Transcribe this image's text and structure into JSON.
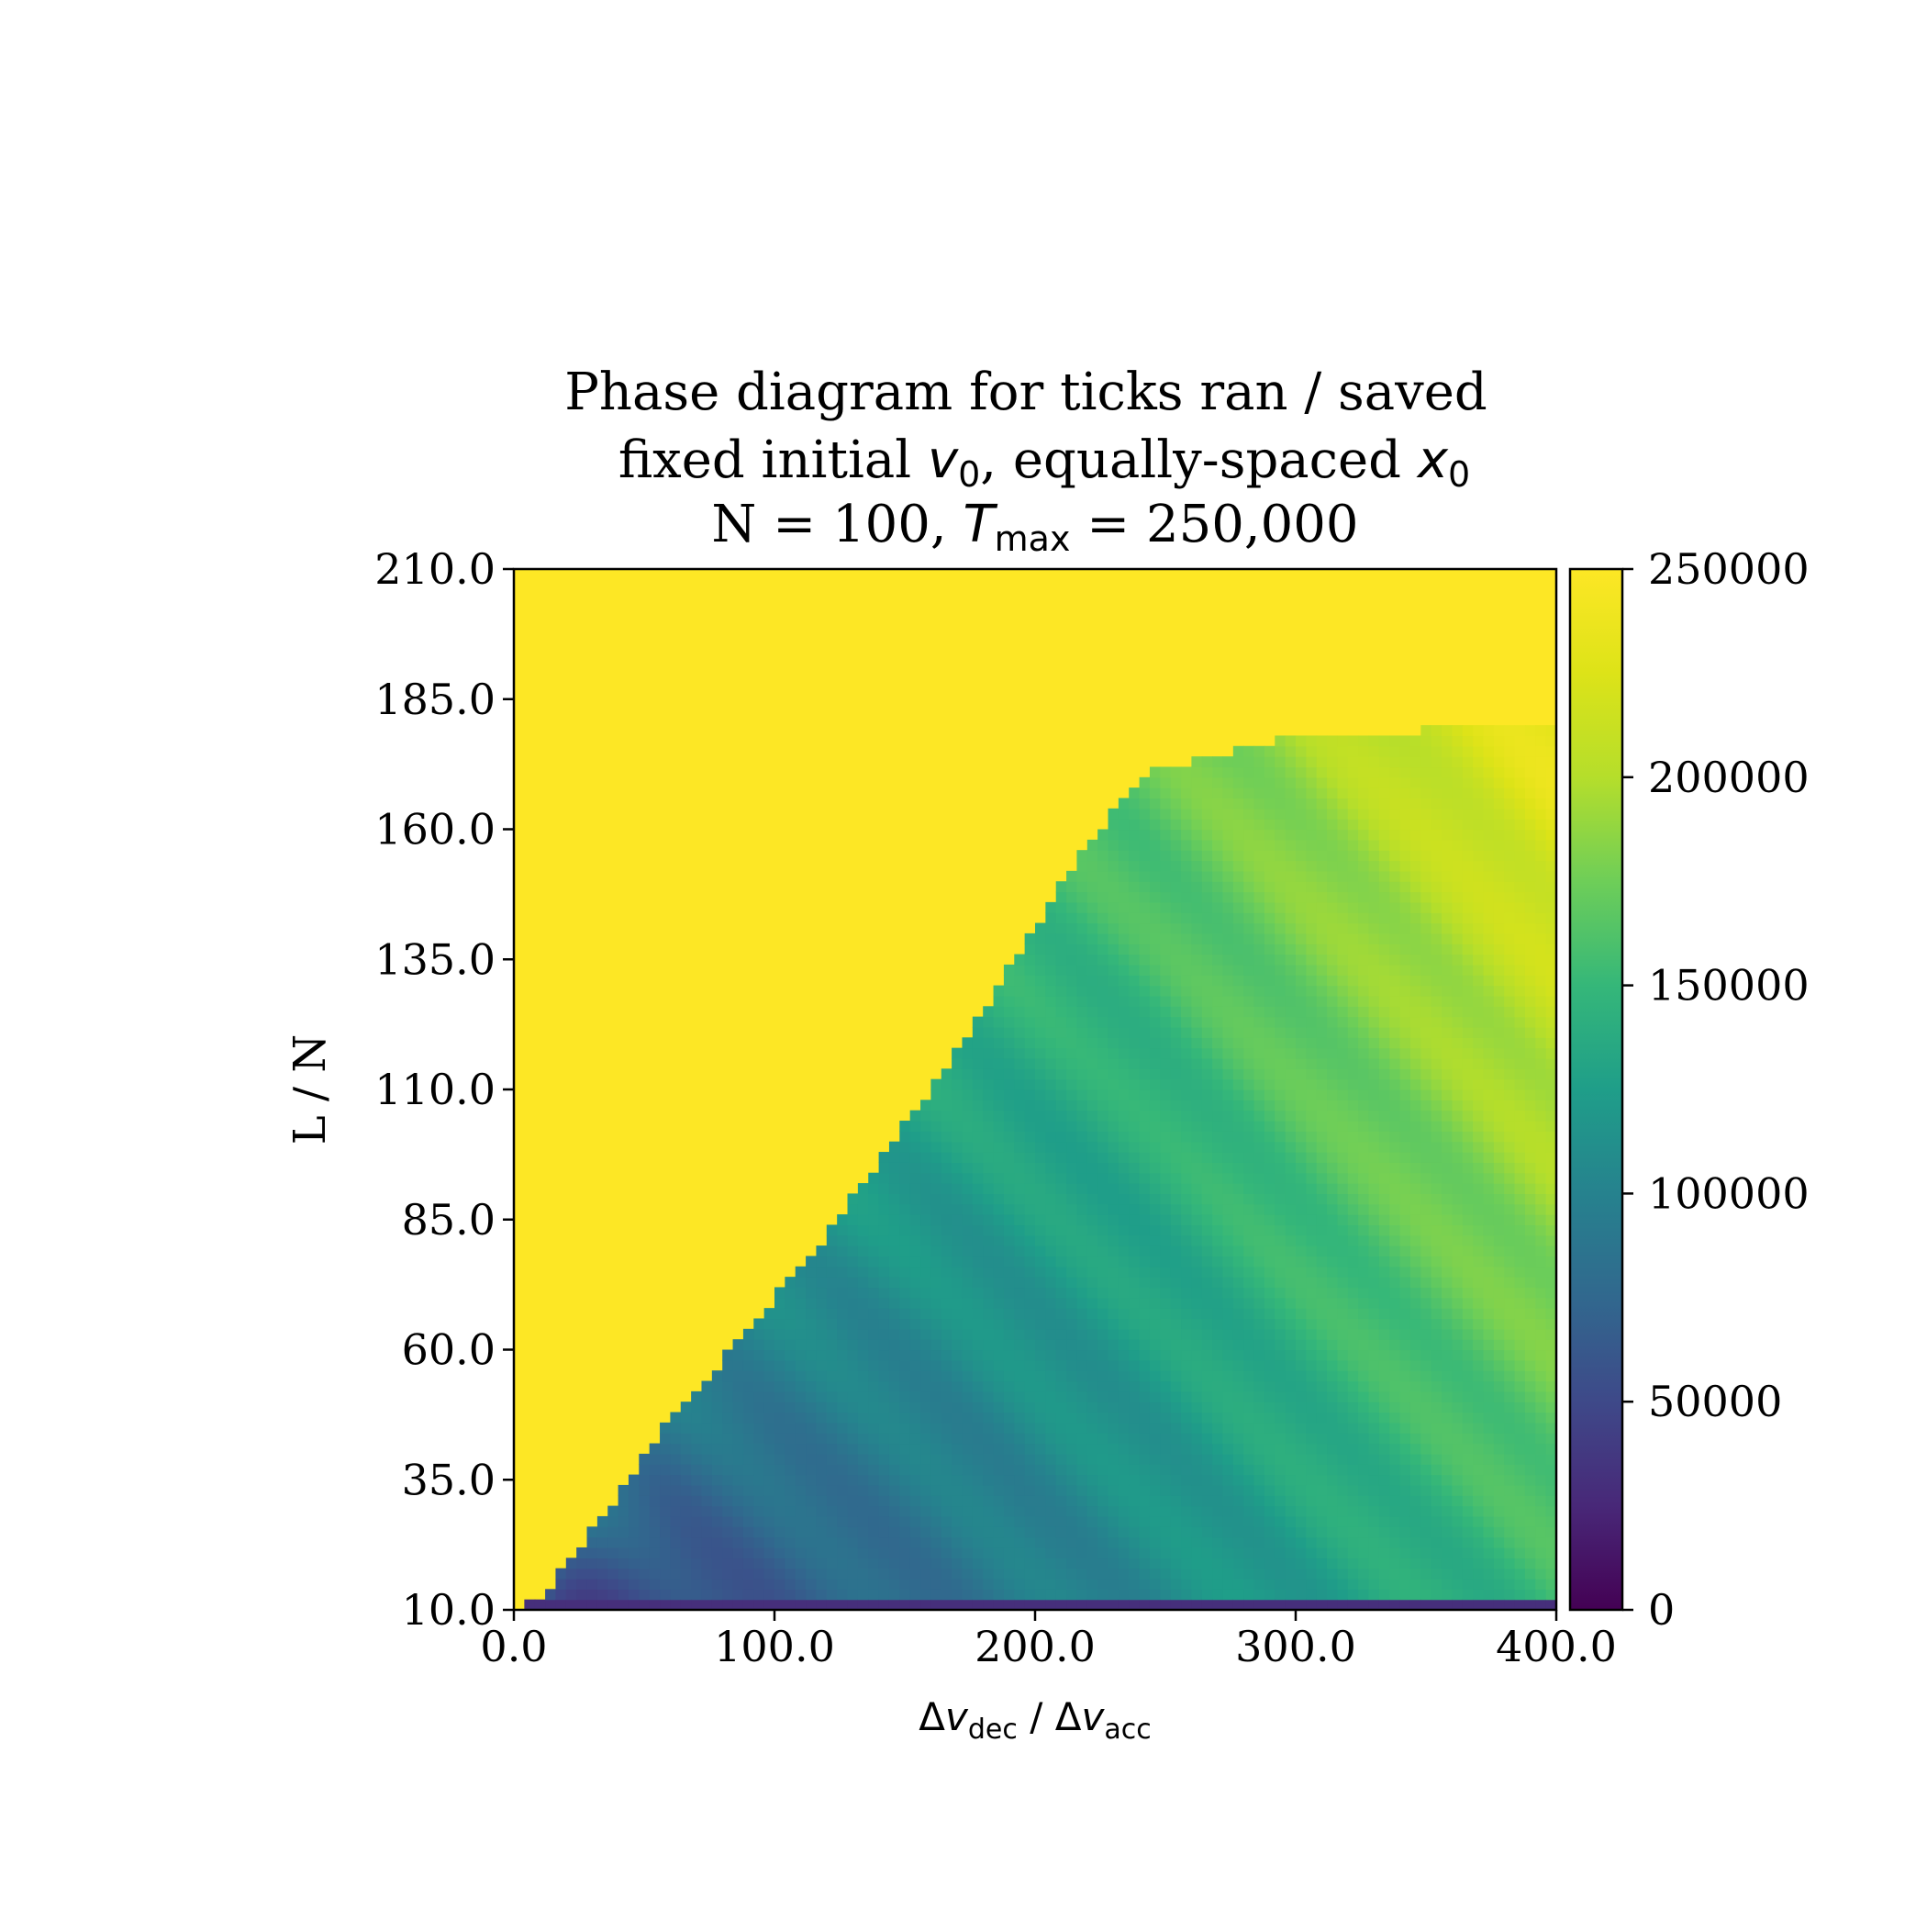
{
  "chart_data": {
    "type": "heatmap",
    "title_lines": [
      "Phase diagram for ticks ran / saved",
      "fixed initial v0, equally-spaced x0",
      "N = 100, Tmax = 250,000"
    ],
    "title_rich": {
      "line1": "Phase diagram for ticks ran / saved",
      "line2_a": "fixed initial ",
      "line2_var1": "v",
      "line2_sub1": "0",
      "line2_b": ", equally-spaced ",
      "line2_var2": "x",
      "line2_sub2": "0",
      "line3_a": "N = 100, ",
      "line3_var": "T",
      "line3_sub": "max",
      "line3_b": " = 250,000"
    },
    "xlabel": "Δv_dec / Δv_acc",
    "xlabel_rich": {
      "a": "Δ",
      "var1": "v",
      "sub1": "dec",
      "mid": " / Δ",
      "var2": "v",
      "sub2": "acc"
    },
    "ylabel": "L / N",
    "xlim": [
      0,
      400
    ],
    "ylim": [
      10,
      210
    ],
    "x_ticks": [
      0,
      100,
      200,
      300,
      400
    ],
    "x_tick_labels": [
      "0.0",
      "100.0",
      "200.0",
      "300.0",
      "400.0"
    ],
    "y_ticks": [
      10,
      35,
      60,
      85,
      110,
      135,
      160,
      185,
      210
    ],
    "y_tick_labels": [
      "10.0",
      "35.0",
      "60.0",
      "85.0",
      "110.0",
      "135.0",
      "160.0",
      "185.0",
      "210.0"
    ],
    "colorbar": {
      "colormap": "viridis",
      "range": [
        0,
        250000
      ],
      "ticks": [
        0,
        50000,
        100000,
        150000,
        200000,
        250000
      ],
      "tick_labels": [
        "0",
        "50000",
        "100000",
        "150000",
        "200000",
        "250000"
      ]
    },
    "boundary_points": [
      [
        0,
        10
      ],
      [
        10,
        12
      ],
      [
        30,
        25
      ],
      [
        60,
        47
      ],
      [
        80,
        58
      ],
      [
        100,
        70
      ],
      [
        120,
        82
      ],
      [
        140,
        96
      ],
      [
        160,
        110
      ],
      [
        180,
        125
      ],
      [
        200,
        141
      ],
      [
        220,
        157
      ],
      [
        240,
        170
      ],
      [
        250,
        172
      ],
      [
        300,
        178
      ],
      [
        400,
        180
      ]
    ],
    "region_values": {
      "above_boundary": 250000,
      "left_lower": 35000,
      "mid_band": 100000,
      "right_upper": 190000,
      "bottom_row": 30000
    }
  },
  "colors": {
    "yellow": "#fde725",
    "axis": "#000000"
  }
}
